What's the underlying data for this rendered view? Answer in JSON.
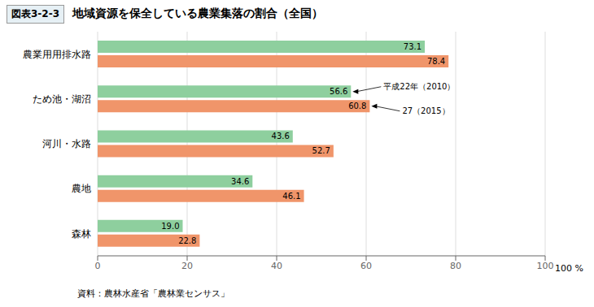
{
  "chart_data": {
    "type": "bar",
    "orientation": "horizontal",
    "title": "地域資源を保全している農業集落の割合（全国）",
    "annotations": [
      "図表3-2-3",
      "100 %",
      "資料：農林水産省「農林業センサス」"
    ],
    "categories": [
      "農業用用排水路",
      "ため池・湖沼",
      "河川・水路",
      "農地",
      "森林"
    ],
    "series": [
      {
        "name": "平成22年（2010）",
        "color": "#8ecf9e",
        "values": [
          73.1,
          56.6,
          43.6,
          34.6,
          19.0
        ],
        "value_labels": [
          "73.1",
          "56.6",
          "43.6",
          "34.6",
          "19.0"
        ]
      },
      {
        "name": "27（2015）",
        "color": "#f0956a",
        "values": [
          78.4,
          60.8,
          52.7,
          46.1,
          22.8
        ],
        "value_labels": [
          "78.4",
          "60.8",
          "52.7",
          "46.1",
          "22.8"
        ]
      }
    ],
    "xlim": [
      0,
      100
    ],
    "xticks": [
      0,
      20,
      40,
      60,
      80,
      100
    ],
    "grid": true,
    "data_labels": true
  }
}
